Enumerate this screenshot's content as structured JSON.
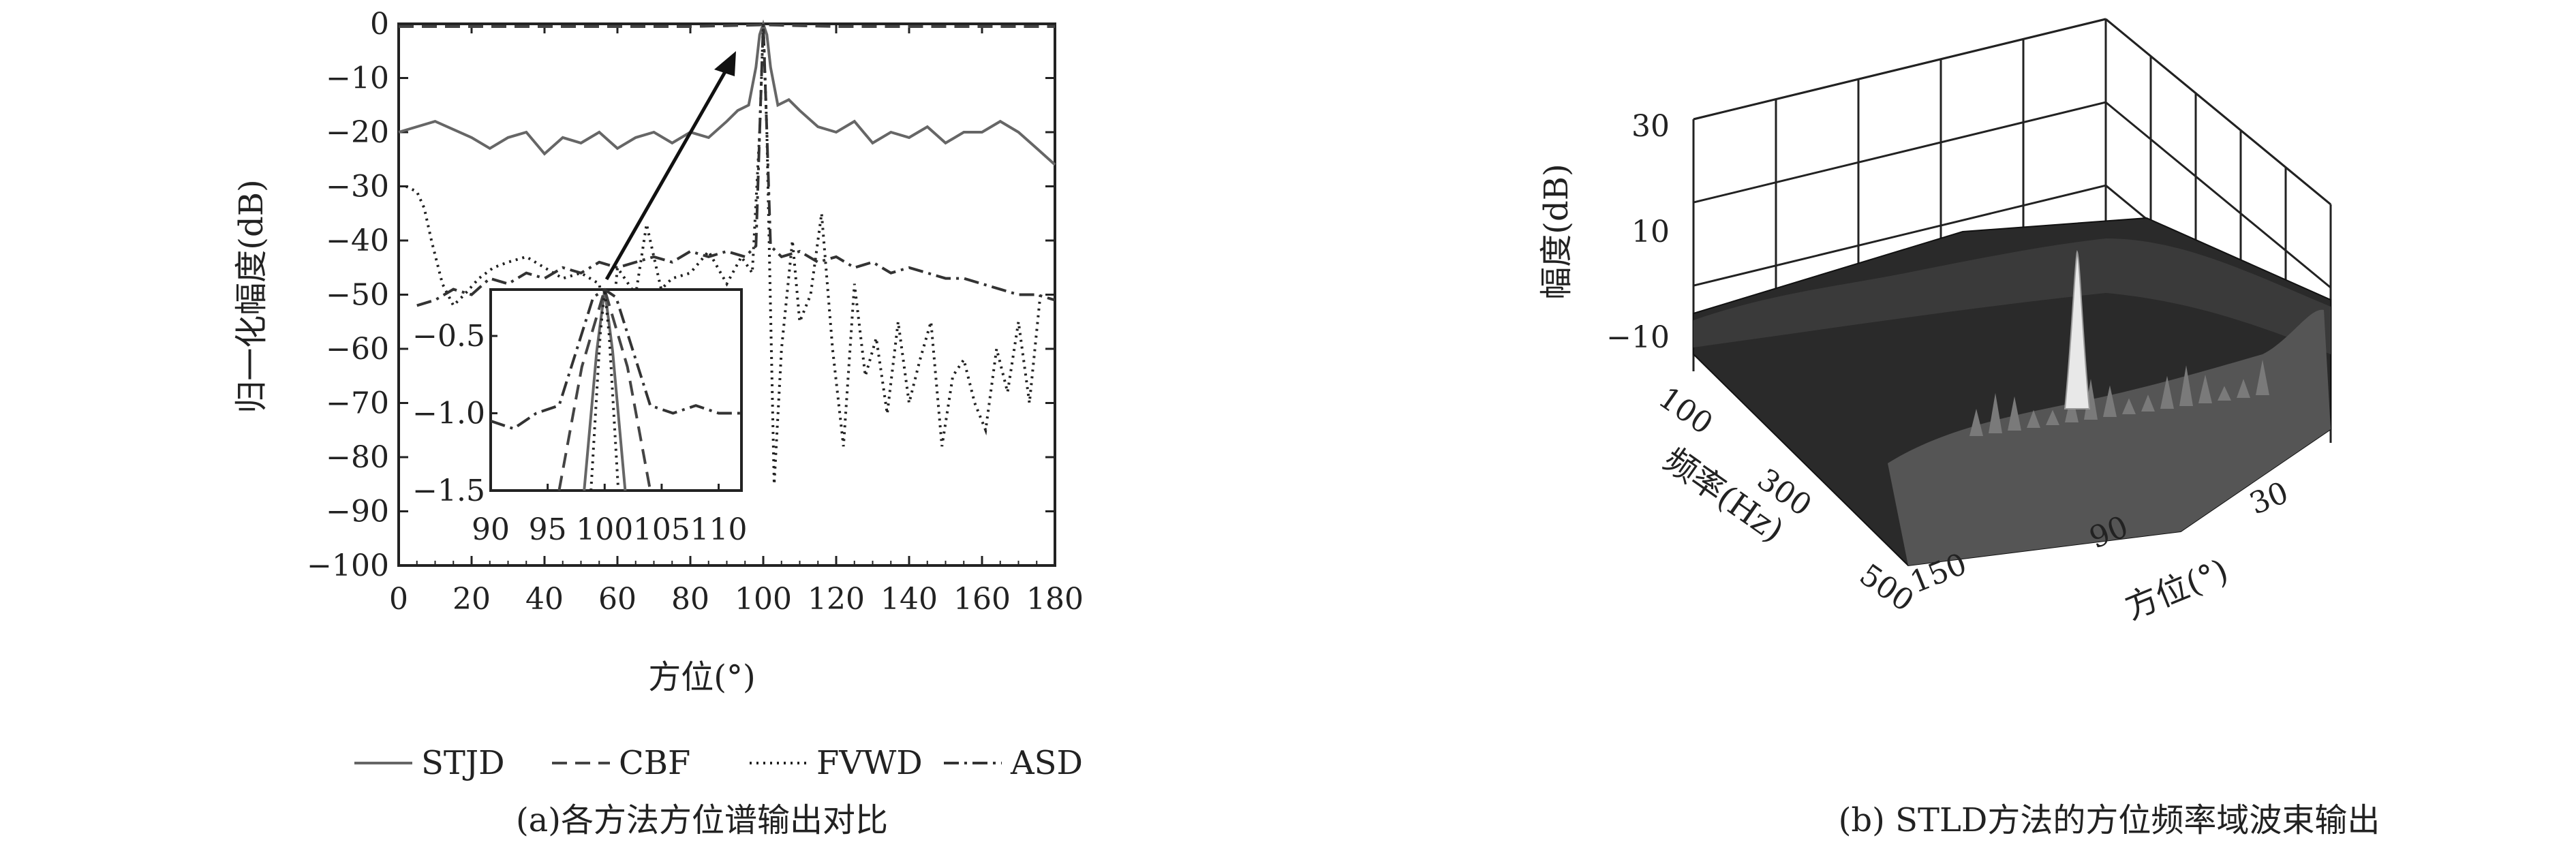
{
  "figure_captions": {
    "a": "(a)各方法方位谱输出对比",
    "b": "(b) STLD方法的方位频率域波束输出"
  },
  "chart_data": [
    {
      "type": "line",
      "panel": "a",
      "xlabel": "方位(°)",
      "ylabel": "归一化幅度(dB)",
      "xlim": [
        0,
        180
      ],
      "ylim": [
        -100,
        0
      ],
      "xticks": [
        0,
        20,
        40,
        60,
        80,
        100,
        120,
        140,
        160,
        180
      ],
      "yticks": [
        0,
        -10,
        -20,
        -30,
        -40,
        -50,
        -60,
        -70,
        -80,
        -90,
        -100
      ],
      "legend": "bottom-center",
      "series": [
        {
          "name": "STJD",
          "style": "solid",
          "color": "#666666",
          "x": [
            0,
            10,
            20,
            25,
            30,
            35,
            40,
            45,
            50,
            55,
            60,
            65,
            70,
            75,
            80,
            85,
            90,
            93,
            96,
            98,
            99,
            100,
            101,
            102,
            104,
            107,
            110,
            115,
            120,
            125,
            130,
            135,
            140,
            145,
            150,
            155,
            160,
            165,
            170,
            175,
            180
          ],
          "y": [
            -20,
            -18,
            -21,
            -23,
            -21,
            -20,
            -24,
            -21,
            -22,
            -20,
            -23,
            -21,
            -20,
            -22,
            -20,
            -21,
            -18,
            -16,
            -15,
            -8,
            -2,
            0,
            -2,
            -8,
            -15,
            -14,
            -16,
            -19,
            -20,
            -18,
            -22,
            -20,
            -21,
            -19,
            -22,
            -20,
            -20,
            -18,
            -20,
            -23,
            -26
          ]
        },
        {
          "name": "CBF",
          "style": "dashed",
          "color": "#444444",
          "x": [
            0,
            20,
            40,
            60,
            80,
            99,
            100,
            101,
            120,
            140,
            160,
            180
          ],
          "y": [
            -0.5,
            -0.5,
            -0.5,
            -0.5,
            -0.5,
            -0.2,
            0,
            -0.2,
            -0.5,
            -0.5,
            -0.5,
            -0.5
          ]
        },
        {
          "name": "FVWD",
          "style": "dotted",
          "color": "#222222",
          "x": [
            2,
            5,
            7,
            9,
            12,
            15,
            18,
            22,
            26,
            30,
            35,
            40,
            45,
            50,
            55,
            58,
            60,
            65,
            68,
            72,
            75,
            80,
            85,
            90,
            94,
            97,
            99,
            100,
            101,
            103,
            105,
            108,
            110,
            113,
            116,
            119,
            122,
            125,
            128,
            131,
            134,
            137,
            140,
            143,
            146,
            149,
            152,
            155,
            158,
            161,
            164,
            167,
            170,
            173,
            176
          ],
          "y": [
            -30,
            -31,
            -34,
            -40,
            -48,
            -52,
            -50,
            -47,
            -45,
            -44,
            -43,
            -45,
            -47,
            -46,
            -48,
            -60,
            -45,
            -50,
            -37,
            -49,
            -47,
            -46,
            -42,
            -48,
            -43,
            -46,
            -20,
            0,
            -20,
            -85,
            -60,
            -40,
            -55,
            -50,
            -35,
            -60,
            -78,
            -48,
            -65,
            -58,
            -72,
            -55,
            -70,
            -62,
            -55,
            -78,
            -65,
            -62,
            -70,
            -75,
            -60,
            -68,
            -55,
            -70,
            -50
          ]
        },
        {
          "name": "ASD",
          "style": "dashdot",
          "color": "#333333",
          "x": [
            5,
            10,
            15,
            20,
            25,
            30,
            35,
            40,
            45,
            50,
            55,
            60,
            65,
            70,
            75,
            80,
            85,
            90,
            95,
            98,
            99,
            100,
            101,
            102,
            105,
            110,
            115,
            120,
            125,
            130,
            135,
            140,
            145,
            150,
            155,
            160,
            165,
            170,
            175,
            180
          ],
          "y": [
            -52,
            -51,
            -49,
            -50,
            -47,
            -48,
            -46,
            -47,
            -45,
            -46,
            -44,
            -45,
            -44,
            -43,
            -44,
            -42,
            -43,
            -42,
            -43,
            -41,
            -20,
            0,
            -20,
            -41,
            -43,
            -42,
            -44,
            -43,
            -45,
            -44,
            -46,
            -45,
            -46,
            -47,
            -47,
            -48,
            -49,
            -50,
            -50,
            -51
          ]
        }
      ],
      "inset": {
        "xlim": [
          90,
          112
        ],
        "ylim": [
          -1.5,
          -0.2
        ],
        "xticks": [
          90,
          95,
          100,
          105,
          110
        ],
        "ytick_labels": [
          "-0.5",
          "-1.0",
          "-1.5"
        ],
        "yticks": [
          -0.5,
          -1.0,
          -1.5
        ]
      }
    },
    {
      "type": "surface",
      "panel": "b",
      "zlabel": "幅度(dB)",
      "ylabel": "频率(Hz)",
      "xlabel": "方位(°)",
      "zticks": [
        30,
        10,
        -10
      ],
      "yticks": [
        100,
        300,
        500
      ],
      "xticks": [
        30,
        90,
        150
      ]
    }
  ]
}
